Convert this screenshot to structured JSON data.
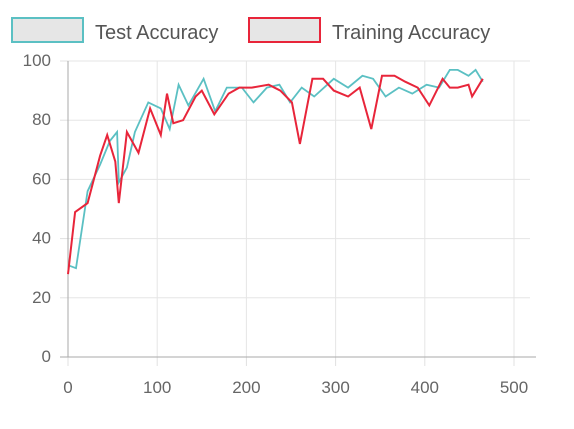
{
  "chart_data": {
    "type": "line",
    "title": "",
    "xlabel": "",
    "ylabel": "",
    "xlim": [
      0,
      500
    ],
    "ylim": [
      0,
      100
    ],
    "x_ticks": [
      0,
      100,
      200,
      300,
      400,
      500
    ],
    "y_ticks": [
      0,
      20,
      40,
      60,
      80,
      100
    ],
    "grid": true,
    "legend_position": "top",
    "series": [
      {
        "name": "Test Accuracy",
        "color": "#5BC0C3",
        "fill": "#E6E6E6",
        "points": [
          [
            0,
            31
          ],
          [
            9,
            30
          ],
          [
            22,
            56
          ],
          [
            36,
            65
          ],
          [
            47,
            73
          ],
          [
            55,
            76
          ],
          [
            57,
            59
          ],
          [
            66,
            64
          ],
          [
            75,
            76
          ],
          [
            90,
            86
          ],
          [
            104,
            84
          ],
          [
            114,
            77
          ],
          [
            124,
            92
          ],
          [
            135,
            85
          ],
          [
            152,
            94
          ],
          [
            165,
            83
          ],
          [
            178,
            91
          ],
          [
            195,
            91
          ],
          [
            208,
            86
          ],
          [
            223,
            91
          ],
          [
            237,
            92
          ],
          [
            249,
            86
          ],
          [
            262,
            91
          ],
          [
            276,
            88
          ],
          [
            298,
            94
          ],
          [
            314,
            91
          ],
          [
            330,
            95
          ],
          [
            342,
            94
          ],
          [
            356,
            88
          ],
          [
            371,
            91
          ],
          [
            386,
            89
          ],
          [
            402,
            92
          ],
          [
            416,
            91
          ],
          [
            428,
            97
          ],
          [
            437,
            97
          ],
          [
            449,
            95
          ],
          [
            457,
            97
          ],
          [
            465,
            93
          ]
        ]
      },
      {
        "name": "Training Accuracy",
        "color": "#E8253A",
        "fill": "#E6E6E6",
        "points": [
          [
            0,
            28
          ],
          [
            8,
            49
          ],
          [
            22,
            52
          ],
          [
            36,
            68
          ],
          [
            44,
            75
          ],
          [
            53,
            66
          ],
          [
            57,
            52
          ],
          [
            66,
            76
          ],
          [
            79,
            69
          ],
          [
            92,
            84
          ],
          [
            104,
            75
          ],
          [
            111,
            89
          ],
          [
            118,
            79
          ],
          [
            129,
            80
          ],
          [
            143,
            88
          ],
          [
            150,
            90
          ],
          [
            164,
            82
          ],
          [
            180,
            89
          ],
          [
            192,
            91
          ],
          [
            206,
            91
          ],
          [
            225,
            92
          ],
          [
            238,
            90
          ],
          [
            251,
            86
          ],
          [
            260,
            72
          ],
          [
            274,
            94
          ],
          [
            286,
            94
          ],
          [
            298,
            90
          ],
          [
            314,
            88
          ],
          [
            327,
            91
          ],
          [
            340,
            77
          ],
          [
            352,
            95
          ],
          [
            366,
            95
          ],
          [
            378,
            93
          ],
          [
            392,
            91
          ],
          [
            405,
            85
          ],
          [
            420,
            94
          ],
          [
            428,
            91
          ],
          [
            437,
            91
          ],
          [
            449,
            92
          ],
          [
            453,
            88
          ],
          [
            465,
            94
          ]
        ]
      }
    ]
  }
}
